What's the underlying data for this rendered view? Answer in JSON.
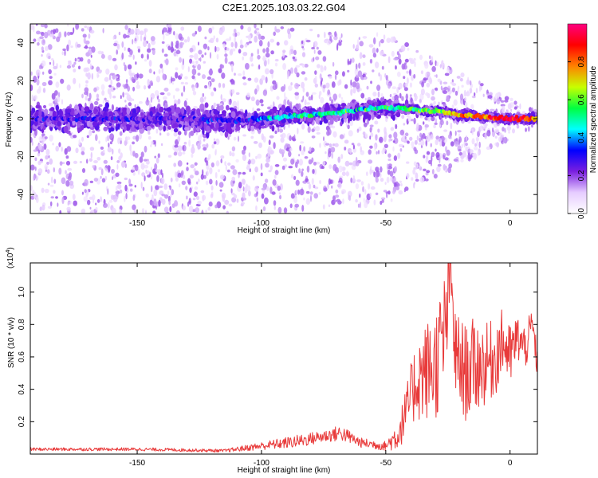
{
  "title": "C2E1.2025.103.03.22.G04",
  "colors": {
    "snr_line": "#e83a3a",
    "axis": "#000000",
    "spectrogram_background": "#ffffff"
  },
  "colorbar": {
    "label": "Normalized spectral amplitude",
    "range": [
      0.0,
      1.0
    ],
    "tick_values": [
      0.0,
      0.2,
      0.4,
      0.6,
      0.8
    ],
    "tick_labels": [
      "0.0",
      "0.2",
      "0.4",
      "0.6",
      "0.8"
    ],
    "colormap": [
      "#ffffff",
      "#e6ccff",
      "#7a1fe0",
      "#0000ff",
      "#00ffff",
      "#00ff40",
      "#c8ff00",
      "#ff8000",
      "#ff0000",
      "#ff0080"
    ]
  },
  "chart_data": [
    {
      "type": "heatmap",
      "name": "spectrogram",
      "xlabel": "Height of straight line (km)",
      "ylabel": "Frequency (Hz)",
      "xlim": [
        -193,
        11
      ],
      "ylim": [
        -50,
        50
      ],
      "x_ticks": [
        -150,
        -100,
        -50,
        0
      ],
      "x_tick_labels": [
        "-150",
        "-100",
        "-50",
        "0"
      ],
      "y_ticks": [
        -40,
        -20,
        0,
        20,
        40
      ],
      "y_tick_labels": [
        "-40",
        "-20",
        "0",
        "20",
        "40"
      ],
      "ridge": {
        "x": [
          -193,
          -170,
          -150,
          -130,
          -110,
          -100,
          -90,
          -80,
          -70,
          -60,
          -50,
          -40,
          -30,
          -20,
          -10,
          0,
          11
        ],
        "frequency_hz": [
          0,
          0,
          0,
          0,
          -1,
          0,
          1,
          2,
          3,
          5,
          6,
          5,
          4,
          2,
          1,
          0,
          0
        ],
        "normalized_amplitude": [
          0.25,
          0.25,
          0.25,
          0.22,
          0.28,
          0.35,
          0.45,
          0.5,
          0.5,
          0.45,
          0.5,
          0.55,
          0.6,
          0.75,
          0.85,
          0.95,
          0.7
        ]
      },
      "scatter_spread_hz": {
        "x": [
          -193,
          -110,
          -50,
          11
        ],
        "max_abs_frequency": [
          50,
          50,
          45,
          3
        ]
      }
    },
    {
      "type": "line",
      "name": "snr",
      "xlabel": "Height of straight line (km)",
      "ylabel": "SNR (10 * v/v)",
      "y_multiplier": "(x10",
      "y_multiplier_exp": "4",
      "y_multiplier_close": ")",
      "xlim": [
        -193,
        11
      ],
      "ylim": [
        0,
        1.18
      ],
      "x_ticks": [
        -150,
        -100,
        -50,
        0
      ],
      "x_tick_labels": [
        "-150",
        "-100",
        "-50",
        "0"
      ],
      "y_ticks": [
        0.2,
        0.4,
        0.6,
        0.8,
        1.0
      ],
      "y_tick_labels": [
        "0.2",
        "0.4",
        "0.6",
        "0.8",
        "1.0"
      ],
      "series": [
        {
          "name": "SNR",
          "x": [
            -193,
            -170,
            -150,
            -130,
            -115,
            -105,
            -95,
            -85,
            -75,
            -68,
            -60,
            -50,
            -45,
            -42,
            -38,
            -35,
            -30,
            -26,
            -24,
            -22,
            -18,
            -14,
            -10,
            -6,
            -3,
            0,
            3,
            6,
            9,
            11
          ],
          "y": [
            0.03,
            0.03,
            0.03,
            0.025,
            0.02,
            0.04,
            0.06,
            0.08,
            0.11,
            0.13,
            0.07,
            0.05,
            0.12,
            0.25,
            0.45,
            0.5,
            0.55,
            0.75,
            1.15,
            0.6,
            0.5,
            0.55,
            0.55,
            0.6,
            0.7,
            0.6,
            0.72,
            0.65,
            0.8,
            0.55
          ],
          "noise_amplitude": [
            0.01,
            0.01,
            0.01,
            0.01,
            0.01,
            0.02,
            0.03,
            0.04,
            0.04,
            0.05,
            0.03,
            0.03,
            0.1,
            0.15,
            0.25,
            0.3,
            0.35,
            0.4,
            0.2,
            0.3,
            0.3,
            0.3,
            0.25,
            0.25,
            0.2,
            0.2,
            0.15,
            0.15,
            0.1,
            0.1
          ]
        }
      ]
    }
  ]
}
